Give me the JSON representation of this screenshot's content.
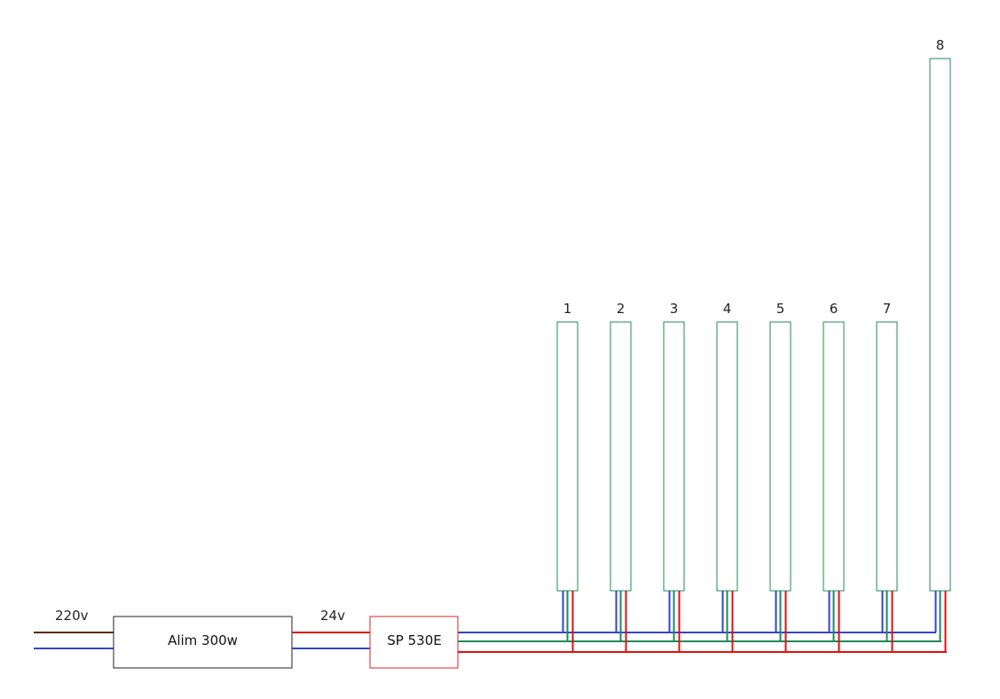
{
  "colors": {
    "brown": "#5a2d0c",
    "blue": "#3344cc",
    "red": "#dd1111",
    "green": "#1f8a5a",
    "box_border": "#222222",
    "controller_border": "#dd2222"
  },
  "input": {
    "label": "220v"
  },
  "power_supply": {
    "label": "Alim 300w"
  },
  "output_voltage": {
    "label": "24v"
  },
  "controller": {
    "label": "SP 530E"
  },
  "strips": [
    {
      "label": "1"
    },
    {
      "label": "2"
    },
    {
      "label": "3"
    },
    {
      "label": "4"
    },
    {
      "label": "5"
    },
    {
      "label": "6"
    },
    {
      "label": "7"
    },
    {
      "label": "8"
    }
  ]
}
